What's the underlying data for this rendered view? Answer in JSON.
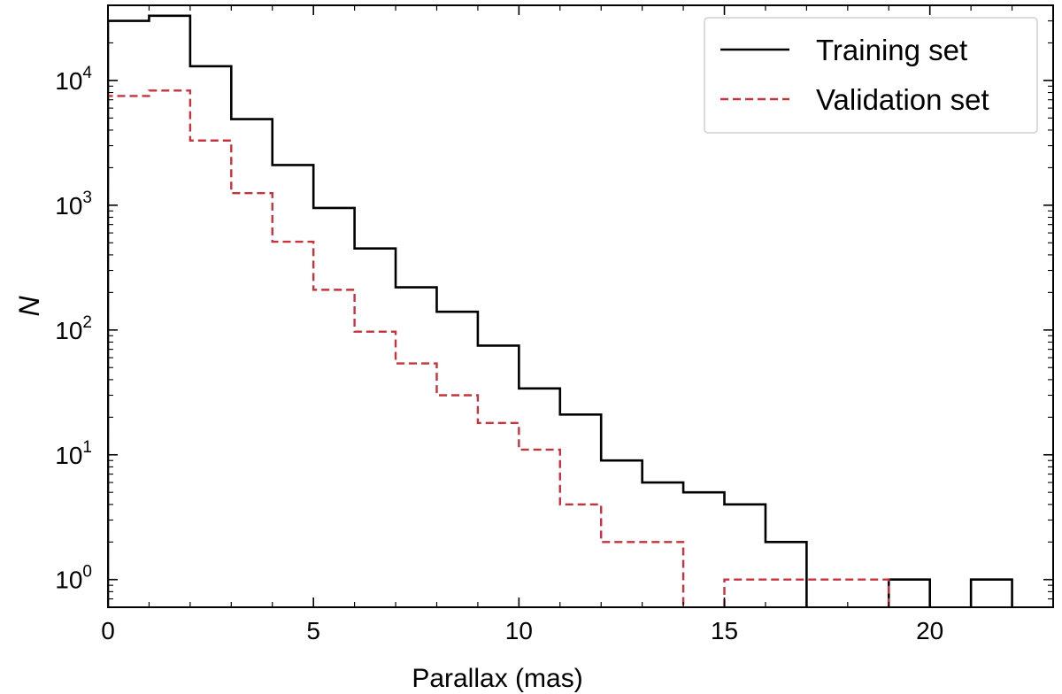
{
  "chart_data": {
    "type": "histogram",
    "title": "",
    "xlabel": "Parallax (mas)",
    "ylabel": "N",
    "xlim": [
      0,
      23
    ],
    "ylim": [
      0.6,
      40000
    ],
    "yscale": "log",
    "xticks": [
      0,
      5,
      10,
      15,
      20
    ],
    "yticks": [
      {
        "value": 1,
        "base": "10",
        "exp": "0"
      },
      {
        "value": 10,
        "base": "10",
        "exp": "1"
      },
      {
        "value": 100,
        "base": "10",
        "exp": "2"
      },
      {
        "value": 1000,
        "base": "10",
        "exp": "3"
      },
      {
        "value": 10000,
        "base": "10",
        "exp": "4"
      }
    ],
    "legend_position": "top-right",
    "bin_edges": [
      0,
      1,
      2,
      3,
      4,
      5,
      6,
      7,
      8,
      9,
      10,
      11,
      12,
      13,
      14,
      15,
      16,
      17,
      18,
      19,
      20,
      21,
      22
    ],
    "series": [
      {
        "name": "Training set",
        "color": "#000000",
        "style": "solid",
        "values": [
          30000,
          33000,
          13000,
          4900,
          2100,
          950,
          450,
          220,
          140,
          75,
          34,
          21,
          9,
          6,
          5,
          4,
          2,
          0,
          0,
          1,
          0,
          1
        ]
      },
      {
        "name": "Validation set",
        "color": "#c8323c",
        "style": "dashed",
        "values": [
          7500,
          8300,
          3300,
          1250,
          510,
          210,
          97,
          54,
          30,
          18,
          11,
          4,
          2,
          2,
          0,
          1,
          1,
          1,
          1,
          0,
          0,
          0
        ]
      }
    ]
  }
}
